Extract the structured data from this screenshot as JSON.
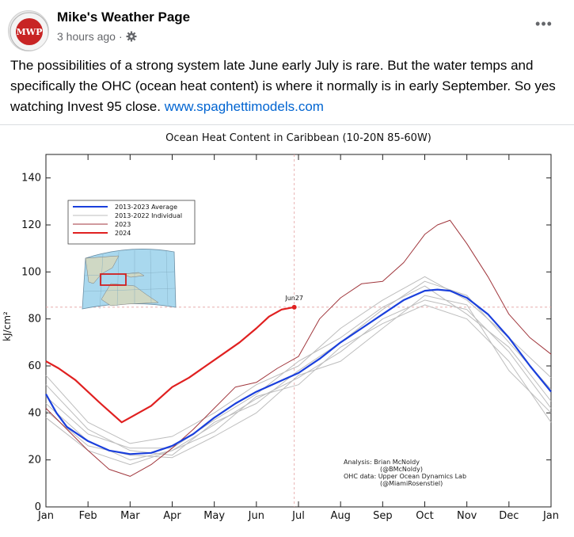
{
  "post": {
    "author": "Mike's Weather Page",
    "avatar_text": "MWP",
    "timestamp": "3 hours ago",
    "separator": "·",
    "visibility_icon": "gear-icon",
    "more_icon": "more-dots-icon",
    "more_label": "•••",
    "text": "The possibilities of a strong system late June early July is rare. But the water temps and specifically the OHC (ocean heat content) is where it normally is in early September. So yes watching Invest 95 close.",
    "link": "www.spaghettimodels.com"
  },
  "colors": {
    "link": "#0064d1",
    "average": "#1a3fdc",
    "individual": "#bdbdbd",
    "y2023": "#a0363c",
    "y2024": "#e02020"
  },
  "chart_data": {
    "type": "line",
    "title": "Ocean Heat Content in Caribbean (10-20N 85-60W)",
    "xlabel": "",
    "ylabel": "kJ/cm²",
    "ylim": [
      0,
      150
    ],
    "yticks": [
      0,
      20,
      40,
      60,
      80,
      100,
      120,
      140
    ],
    "xticks": [
      "Jan",
      "Feb",
      "Mar",
      "Apr",
      "May",
      "Jun",
      "Jul",
      "Aug",
      "Sep",
      "Oct",
      "Nov",
      "Dec",
      "Jan"
    ],
    "grid": false,
    "legend_position": "top-left",
    "reference_line": 85,
    "marker_label": "Jun27",
    "inset_map": "Caribbean region highlighted",
    "annotations": [
      "Analysis: Brian McNoldy",
      "(@BMcNoldy)",
      "OHC data: Upper Ocean Dynamics Lab",
      "(@MiamiRosenstiel)"
    ],
    "series": [
      {
        "name": "2013-2023 Average",
        "color_key": "average",
        "x": [
          0,
          0.25,
          0.5,
          1,
          1.5,
          2,
          2.5,
          3,
          3.5,
          4,
          4.5,
          5,
          5.5,
          6,
          6.5,
          7,
          7.5,
          8,
          8.5,
          9,
          9.3,
          9.6,
          10,
          10.5,
          11,
          11.5,
          12
        ],
        "values": [
          48,
          40,
          34,
          28,
          24,
          22.5,
          23,
          26,
          31,
          38,
          44,
          49,
          53,
          57,
          63,
          70,
          76,
          82,
          88,
          92,
          92.5,
          92,
          89,
          82,
          72,
          60,
          49
        ]
      },
      {
        "name": "2013-2022 Individual",
        "color_key": "individual",
        "group": true,
        "x": [
          0,
          1,
          2,
          3,
          4,
          5,
          6,
          7,
          8,
          9,
          10,
          11,
          12
        ],
        "values": [
          44,
          28,
          20,
          24,
          35,
          46,
          55,
          66,
          80,
          88,
          84,
          66,
          42
        ]
      },
      {
        "name": "",
        "color_key": "individual",
        "group": true,
        "x": [
          0,
          1,
          2,
          3,
          4,
          5,
          6,
          7,
          8,
          9,
          10,
          11,
          12
        ],
        "values": [
          52,
          33,
          24,
          22,
          36,
          44,
          58,
          70,
          84,
          96,
          90,
          70,
          50
        ]
      },
      {
        "name": "",
        "color_key": "individual",
        "group": true,
        "x": [
          0,
          1,
          2,
          3,
          4,
          5,
          6,
          7,
          8,
          9,
          10,
          11,
          12
        ],
        "values": [
          38,
          24,
          18,
          24,
          32,
          47,
          52,
          68,
          78,
          86,
          80,
          62,
          36
        ]
      },
      {
        "name": "",
        "color_key": "individual",
        "group": true,
        "x": [
          0,
          1,
          2,
          3,
          4,
          5,
          6,
          7,
          8,
          9,
          10,
          11,
          12
        ],
        "values": [
          56,
          36,
          27,
          30,
          40,
          52,
          60,
          76,
          88,
          98,
          88,
          72,
          55
        ]
      },
      {
        "name": "",
        "color_key": "individual",
        "group": true,
        "x": [
          0,
          1,
          2,
          3,
          4,
          5,
          6,
          7,
          8,
          9,
          10,
          11,
          12
        ],
        "values": [
          41,
          26,
          22,
          21,
          30,
          40,
          56,
          62,
          76,
          90,
          86,
          58,
          40
        ]
      },
      {
        "name": "",
        "color_key": "individual",
        "group": true,
        "x": [
          0,
          1,
          2,
          3,
          4,
          5,
          6,
          7,
          8,
          9,
          10,
          11,
          12
        ],
        "values": [
          47,
          31,
          25,
          25,
          37,
          48,
          62,
          72,
          85,
          94,
          82,
          68,
          45
        ]
      },
      {
        "name": "2023",
        "color_key": "y2023",
        "x": [
          0,
          1,
          1.5,
          2,
          2.5,
          3,
          3.5,
          4,
          4.5,
          5,
          5.5,
          6,
          6.5,
          7,
          7.5,
          8,
          8.5,
          9,
          9.3,
          9.6,
          10,
          10.5,
          11,
          11.5,
          12
        ],
        "values": [
          42,
          24,
          16,
          13,
          18,
          25,
          33,
          42,
          51,
          53,
          59,
          64,
          80,
          89,
          95,
          96,
          104,
          116,
          120,
          122,
          112,
          98,
          82,
          72,
          65
        ]
      },
      {
        "name": "2024",
        "color_key": "y2024",
        "x": [
          0,
          0.3,
          0.7,
          1.3,
          1.8,
          2,
          2.5,
          3,
          3.4,
          3.8,
          4.2,
          4.6,
          5,
          5.3,
          5.6,
          5.9
        ],
        "values": [
          62,
          59,
          54,
          44,
          36,
          38,
          43,
          51,
          55,
          60,
          65,
          70,
          76,
          81,
          84,
          85
        ]
      }
    ]
  }
}
